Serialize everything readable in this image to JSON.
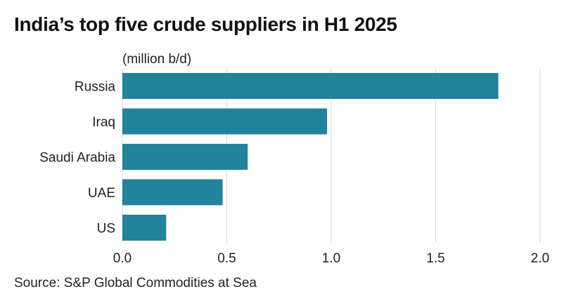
{
  "title": "India’s top five crude suppliers in H1 2025",
  "source": "Source: S&P Global Commodities at Sea",
  "chart_data": {
    "type": "bar",
    "orientation": "horizontal",
    "title": "India’s top five crude suppliers in H1 2025",
    "unit_label": "(million b/d)",
    "categories": [
      "Russia",
      "Iraq",
      "Saudi Arabia",
      "UAE",
      "US"
    ],
    "values": [
      1.8,
      0.98,
      0.6,
      0.48,
      0.21
    ],
    "xlim": [
      0,
      2.0
    ],
    "xticks": [
      "0.0",
      "0.5",
      "1.0",
      "1.5",
      "2.0"
    ],
    "grid": true,
    "bar_color": "#23839a",
    "grid_color": "#d9d9d9"
  }
}
